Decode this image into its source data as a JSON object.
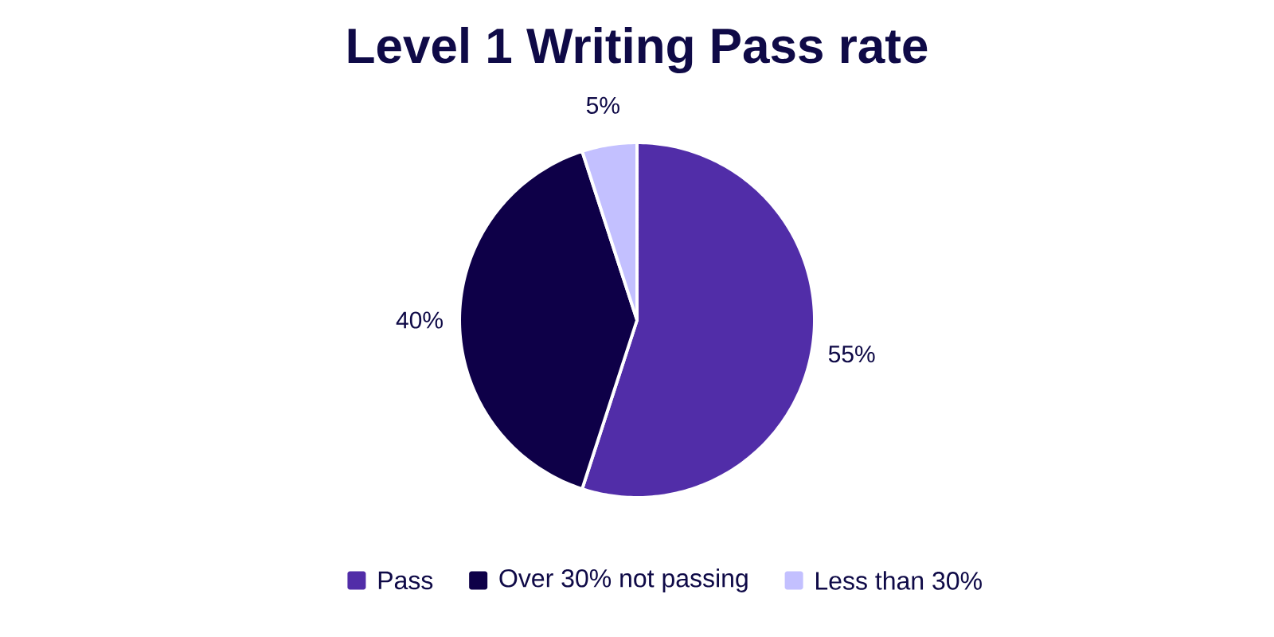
{
  "chart_data": {
    "type": "pie",
    "title": "Level 1 Writing Pass rate",
    "categories": [
      "Pass",
      "Over 30% not passing",
      "Less than 30%"
    ],
    "values": [
      55,
      40,
      5
    ],
    "colors": [
      "#512da8",
      "#0e0048",
      "#c3c0ff"
    ],
    "value_labels": [
      "55%",
      "40%",
      "5%"
    ],
    "legend": "bottom"
  }
}
